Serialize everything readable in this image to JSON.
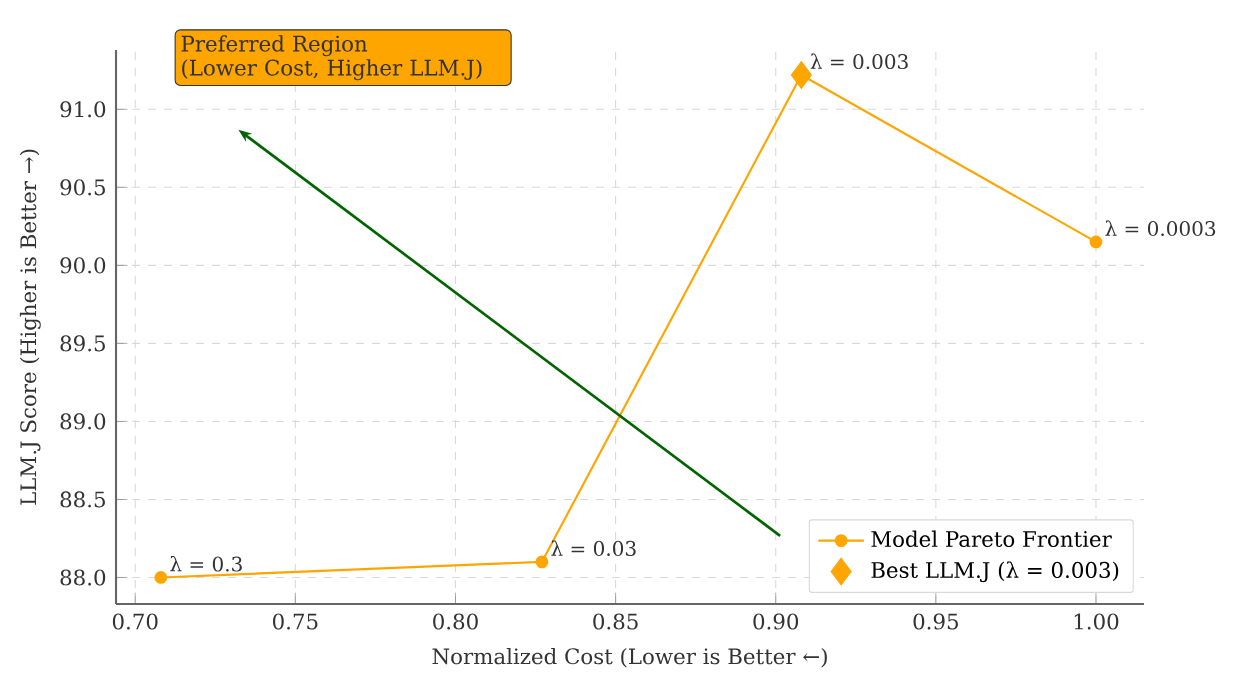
{
  "chart_data": {
    "type": "line",
    "xlabel": "Normalized Cost (Lower is Better ←)",
    "ylabel": "LLM.J Score (Higher is Better →)",
    "x": [
      0.708,
      0.827,
      0.908,
      1.0
    ],
    "series": [
      {
        "name": "Model Pareto Frontier",
        "color": "#ffa500",
        "marker": "circle",
        "values": [
          88.0,
          88.1,
          91.22,
          90.15
        ]
      },
      {
        "name": "Best LLM.J (λ = 0.003)",
        "type": "scatter",
        "color": "#ffa500",
        "marker": "diamond",
        "x": [
          0.908
        ],
        "values": [
          91.22
        ]
      }
    ],
    "xlim": [
      0.694,
      1.015
    ],
    "ylim": [
      87.83,
      91.38
    ],
    "xticks": [
      {
        "value": 0.7,
        "label": "0.70"
      },
      {
        "value": 0.75,
        "label": "0.75"
      },
      {
        "value": 0.8,
        "label": "0.80"
      },
      {
        "value": 0.85,
        "label": "0.85"
      },
      {
        "value": 0.9,
        "label": "0.90"
      },
      {
        "value": 0.95,
        "label": "0.95"
      },
      {
        "value": 1.0,
        "label": "1.00"
      }
    ],
    "yticks": [
      {
        "value": 88.0,
        "label": "88.0"
      },
      {
        "value": 88.5,
        "label": "88.5"
      },
      {
        "value": 89.0,
        "label": "89.0"
      },
      {
        "value": 89.5,
        "label": "89.5"
      },
      {
        "value": 90.0,
        "label": "90.0"
      },
      {
        "value": 90.5,
        "label": "90.5"
      },
      {
        "value": 91.0,
        "label": "91.0"
      }
    ],
    "annotations": [
      {
        "text": "λ = 0.3",
        "x": 0.708,
        "y": 88.0
      },
      {
        "text": "λ = 0.03",
        "x": 0.827,
        "y": 88.1
      },
      {
        "text": "λ = 0.003",
        "x": 0.908,
        "y": 91.22
      },
      {
        "text": "λ = 0.0003",
        "x": 1.0,
        "y": 90.15
      },
      "Preferred Region\n(Lower Cost, Higher LLM.J)"
    ],
    "grid": true,
    "legend": "bottom right"
  }
}
